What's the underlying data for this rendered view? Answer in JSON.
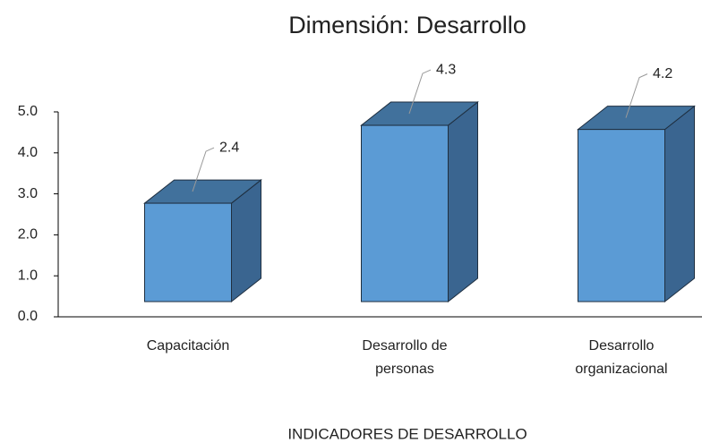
{
  "chart_data": {
    "type": "bar",
    "title": "Dimensión: Desarrollo",
    "x_label": "INDICADORES DE DESARROLLO",
    "categories": [
      "Capacitación",
      "Desarrollo de personas",
      "Desarrollo organizacional"
    ],
    "values": [
      2.4,
      4.3,
      4.2
    ],
    "color": "#5b9bd5",
    "ylim": [
      0,
      5
    ],
    "yticks": [
      {
        "value": 0,
        "label": "0.0"
      },
      {
        "value": 1,
        "label": "1.0"
      },
      {
        "value": 2,
        "label": "2.0"
      },
      {
        "value": 3,
        "label": "3.0"
      },
      {
        "value": 4,
        "label": "4.0"
      },
      {
        "value": 5,
        "label": "5.0"
      }
    ],
    "grid": false
  }
}
